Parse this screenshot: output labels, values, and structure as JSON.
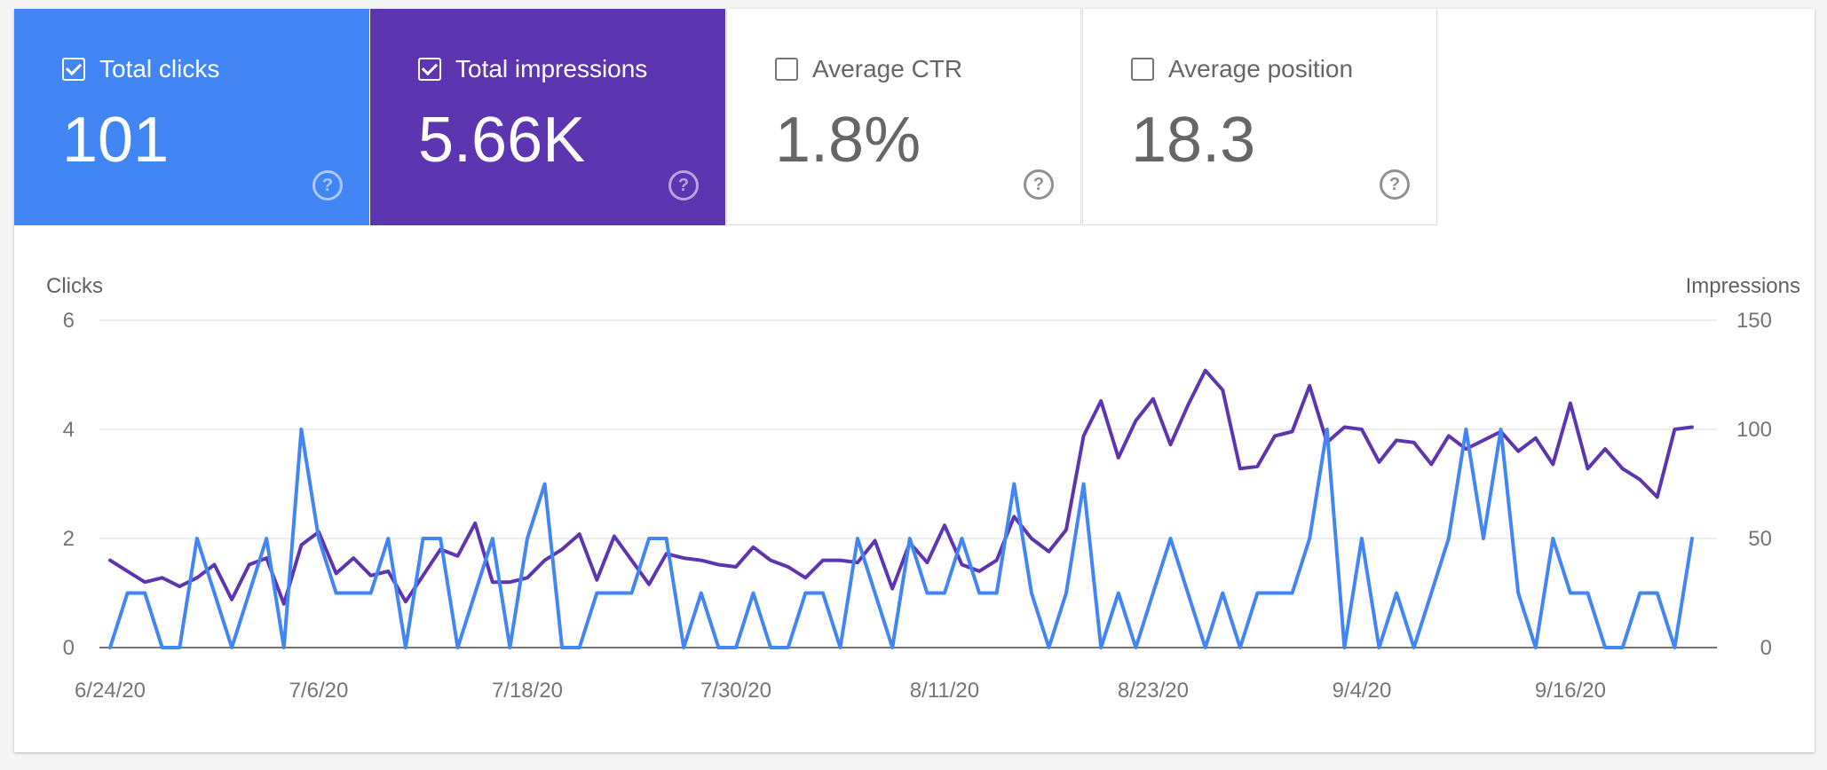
{
  "cards": [
    {
      "label": "Total clicks",
      "value": "101",
      "checked": true,
      "color": "#4285f4"
    },
    {
      "label": "Total impressions",
      "value": "5.66K",
      "checked": true,
      "color": "#5e35b1"
    },
    {
      "label": "Average CTR",
      "value": "1.8%",
      "checked": false,
      "color": "#ffffff"
    },
    {
      "label": "Average position",
      "value": "18.3",
      "checked": false,
      "color": "#ffffff"
    }
  ],
  "help_glyph": "?",
  "chart_data": {
    "type": "line",
    "ylabel_left": "Clicks",
    "ylabel_right": "Impressions",
    "ylim_left": [
      0,
      6
    ],
    "ylim_right": [
      0,
      150
    ],
    "yticks_left": [
      "0",
      "2",
      "4",
      "6"
    ],
    "yticks_right": [
      "0",
      "50",
      "100",
      "150"
    ],
    "x_ticks": [
      {
        "label": "6/24/20",
        "index": 0
      },
      {
        "label": "7/6/20",
        "index": 12
      },
      {
        "label": "7/18/20",
        "index": 24
      },
      {
        "label": "7/30/20",
        "index": 36
      },
      {
        "label": "8/11/20",
        "index": 48
      },
      {
        "label": "8/23/20",
        "index": 60
      },
      {
        "label": "9/4/20",
        "index": 72
      },
      {
        "label": "9/16/20",
        "index": 84
      }
    ],
    "grid": true,
    "series": [
      {
        "name": "Clicks",
        "axis": "left",
        "color": "#4285f4",
        "values": [
          0,
          1,
          1,
          0,
          0,
          2,
          1,
          0,
          1,
          2,
          0,
          4,
          2,
          1,
          1,
          1,
          2,
          0,
          2,
          2,
          0,
          1,
          2,
          0,
          2,
          3,
          0,
          0,
          1,
          1,
          1,
          2,
          2,
          0,
          1,
          0,
          0,
          1,
          0,
          0,
          1,
          1,
          0,
          2,
          1,
          0,
          2,
          1,
          1,
          2,
          1,
          1,
          3,
          1,
          0,
          1,
          3,
          0,
          1,
          0,
          1,
          2,
          1,
          0,
          1,
          0,
          1,
          1,
          1,
          2,
          4,
          0,
          2,
          0,
          1,
          0,
          1,
          2,
          4,
          2,
          4,
          1,
          0,
          2,
          1,
          1,
          0,
          0,
          1,
          1,
          0,
          2
        ]
      },
      {
        "name": "Impressions",
        "axis": "right",
        "color": "#5e35b1",
        "values": [
          40,
          35,
          30,
          32,
          28,
          32,
          38,
          22,
          38,
          41,
          20,
          47,
          53,
          34,
          41,
          33,
          35,
          21,
          33,
          45,
          42,
          57,
          30,
          30,
          32,
          40,
          45,
          52,
          31,
          51,
          40,
          29,
          43,
          41,
          40,
          38,
          37,
          46,
          40,
          37,
          32,
          40,
          40,
          39,
          49,
          27,
          48,
          39,
          56,
          38,
          35,
          40,
          60,
          50,
          44,
          54,
          97,
          113,
          87,
          104,
          114,
          93,
          111,
          127,
          118,
          82,
          83,
          97,
          99,
          120,
          94,
          101,
          100,
          85,
          95,
          94,
          84,
          97,
          91,
          95,
          99,
          90,
          96,
          84,
          112,
          82,
          91,
          82,
          77,
          69,
          100,
          101
        ]
      }
    ]
  }
}
